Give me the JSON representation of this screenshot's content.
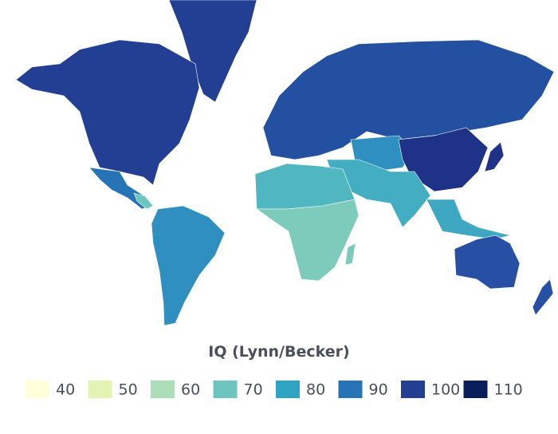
{
  "legend": {
    "title": "IQ (Lynn/Becker)",
    "items": [
      {
        "value": 40,
        "color": "#ffffd9"
      },
      {
        "value": 50,
        "color": "#e2f3b3"
      },
      {
        "value": 60,
        "color": "#acdeb8"
      },
      {
        "value": 70,
        "color": "#6cc6bf"
      },
      {
        "value": 80,
        "color": "#2fa3c2"
      },
      {
        "value": 90,
        "color": "#2673b5"
      },
      {
        "value": 100,
        "color": "#233f94"
      },
      {
        "value": 110,
        "color": "#0b1e5c"
      }
    ]
  }
}
